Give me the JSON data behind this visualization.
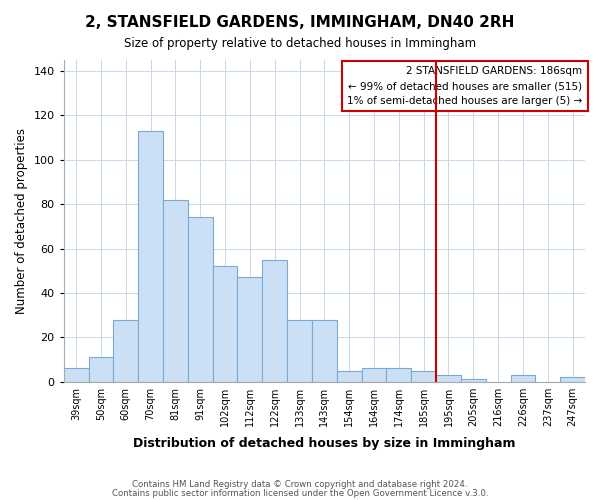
{
  "title": "2, STANSFIELD GARDENS, IMMINGHAM, DN40 2RH",
  "subtitle": "Size of property relative to detached houses in Immingham",
  "xlabel": "Distribution of detached houses by size in Immingham",
  "ylabel": "Number of detached properties",
  "bar_labels": [
    "39sqm",
    "50sqm",
    "60sqm",
    "70sqm",
    "81sqm",
    "91sqm",
    "102sqm",
    "112sqm",
    "122sqm",
    "133sqm",
    "143sqm",
    "154sqm",
    "164sqm",
    "174sqm",
    "185sqm",
    "195sqm",
    "205sqm",
    "216sqm",
    "226sqm",
    "237sqm",
    "247sqm"
  ],
  "bar_heights": [
    6,
    11,
    28,
    113,
    82,
    74,
    52,
    47,
    55,
    28,
    28,
    5,
    6,
    6,
    5,
    3,
    1,
    0,
    3,
    0,
    2
  ],
  "bar_color": "#cce0f5",
  "bar_edge_color": "#7aaad4",
  "vline_x": 14,
  "vline_color": "#cc0000",
  "ylim": [
    0,
    145
  ],
  "yticks": [
    0,
    20,
    40,
    60,
    80,
    100,
    120,
    140
  ],
  "legend_title": "2 STANSFIELD GARDENS: 186sqm",
  "legend_line1": "← 99% of detached houses are smaller (515)",
  "legend_line2": "1% of semi-detached houses are larger (5) →",
  "legend_box_color": "#ffffff",
  "legend_box_edge": "#cc0000",
  "footer_line1": "Contains HM Land Registry data © Crown copyright and database right 2024.",
  "footer_line2": "Contains public sector information licensed under the Open Government Licence v.3.0.",
  "background_color": "#ffffff",
  "grid_color": "#c8d8e8"
}
